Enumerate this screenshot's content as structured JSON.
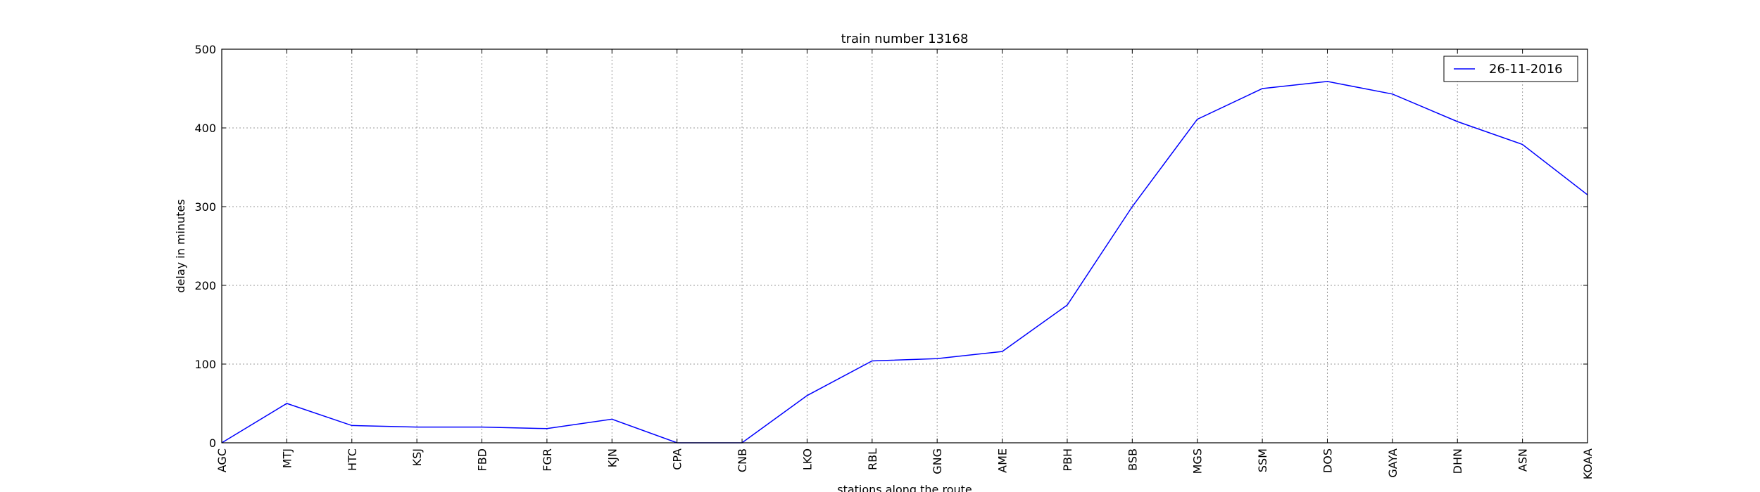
{
  "chart_data": {
    "type": "line",
    "title": "train number 13168",
    "xlabel": "stations along the route",
    "ylabel": "delay in minutes",
    "ylim": [
      0,
      500
    ],
    "yticks": [
      "0",
      "100",
      "200",
      "300",
      "400",
      "500"
    ],
    "grid": true,
    "legend_position": "top-right",
    "categories": [
      "AGC",
      "MTJ",
      "HTC",
      "KSJ",
      "FBD",
      "FGR",
      "KJN",
      "CPA",
      "CNB",
      "LKO",
      "RBL",
      "GNG",
      "AME",
      "PBH",
      "BSB",
      "MGS",
      "SSM",
      "DOS",
      "GAYA",
      "DHN",
      "ASN",
      "KOAA"
    ],
    "series": [
      {
        "name": "26-11-2016",
        "color": "#0000ff",
        "values": [
          0,
          50,
          22,
          20,
          20,
          18,
          30,
          0,
          0,
          60,
          104,
          107,
          116,
          175,
          300,
          411,
          450,
          459,
          443,
          408,
          379,
          315
        ]
      }
    ]
  }
}
